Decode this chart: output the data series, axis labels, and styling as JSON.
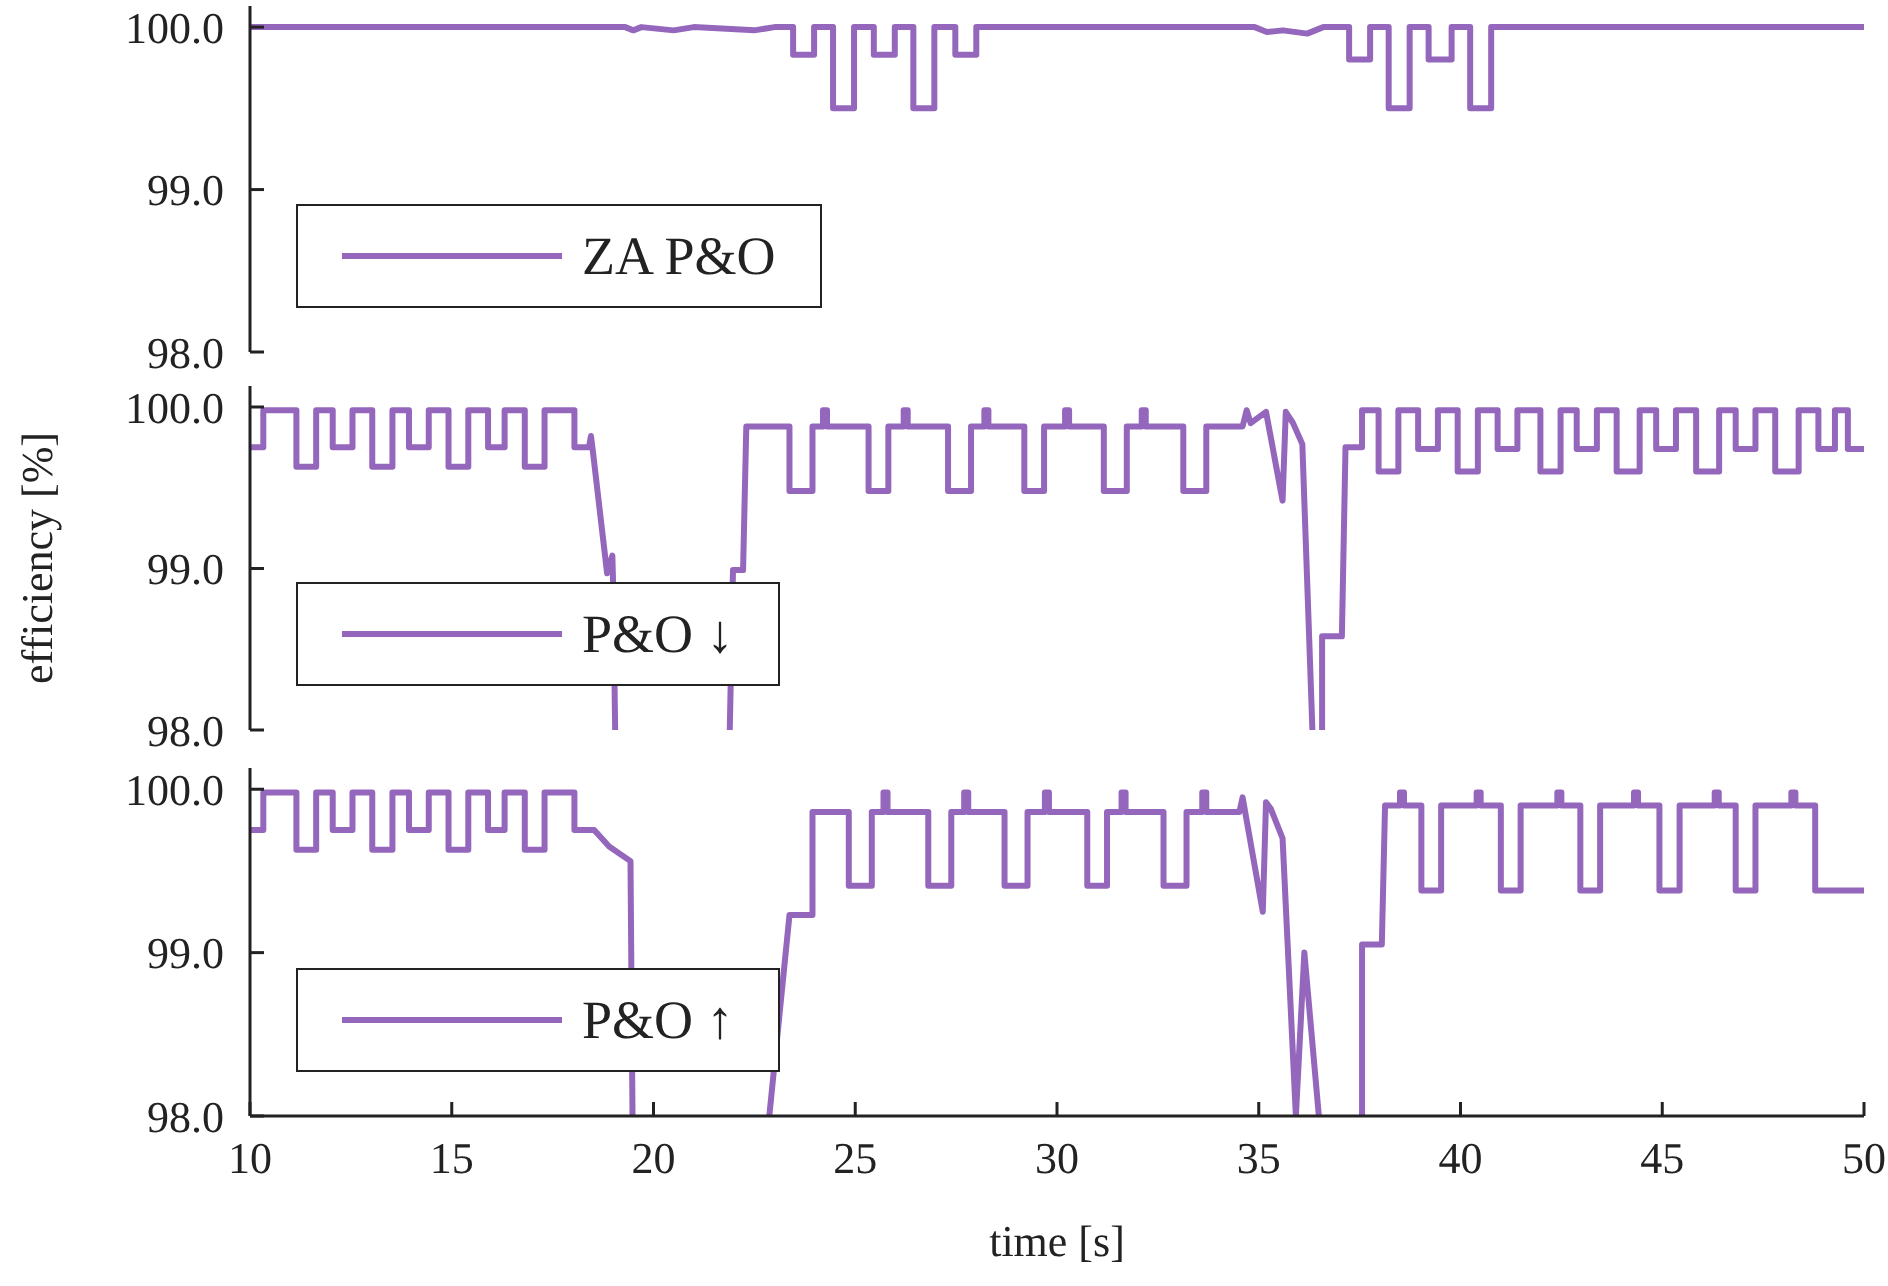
{
  "chart_data": [
    {
      "type": "line",
      "xlim": [
        10,
        50
      ],
      "xticks": [
        10,
        15,
        20,
        25,
        30,
        35,
        40,
        45,
        50
      ],
      "ylim": [
        98,
        100.13
      ],
      "yticks": [
        {
          "value": 98,
          "label": "98.0"
        },
        {
          "value": 99,
          "label": "99.0"
        },
        {
          "value": 100,
          "label": "100.0"
        }
      ],
      "tick_labels": "y",
      "legend": "bottom left",
      "series": [
        {
          "name": "ZA P&O",
          "color": "#9467bd",
          "x": [
            10,
            19.3,
            19.5,
            19.7,
            20.5,
            21.0,
            22.5,
            23.0,
            23.46,
            23.46,
            23.98,
            23.98,
            24.45,
            24.45,
            24.97,
            24.97,
            25.46,
            25.46,
            25.98,
            25.98,
            26.44,
            26.44,
            26.96,
            26.96,
            27.48,
            27.48,
            28.0,
            28.0,
            34.9,
            35.2,
            35.6,
            36.2,
            36.6,
            37.24,
            37.24,
            37.76,
            37.76,
            38.22,
            38.22,
            38.74,
            38.74,
            39.21,
            39.21,
            39.78,
            39.78,
            40.24,
            40.24,
            40.76,
            40.76,
            50
          ],
          "values": [
            100,
            100,
            99.98,
            100,
            99.98,
            100,
            99.98,
            100,
            100,
            99.83,
            99.83,
            100,
            100,
            99.5,
            99.5,
            100,
            100,
            99.83,
            99.83,
            100,
            100,
            99.5,
            99.5,
            100,
            100,
            99.83,
            99.83,
            100,
            100,
            99.97,
            99.98,
            99.96,
            100,
            100,
            99.8,
            99.8,
            100,
            100,
            99.5,
            99.5,
            100,
            100,
            99.8,
            99.8,
            100,
            100,
            99.5,
            99.5,
            100,
            100
          ]
        }
      ]
    },
    {
      "type": "line",
      "ylabel": "efficiency [%]",
      "xlim": [
        10,
        50
      ],
      "xticks": [
        10,
        15,
        20,
        25,
        30,
        35,
        40,
        45,
        50
      ],
      "ylim": [
        98,
        100.13
      ],
      "yticks": [
        {
          "value": 98,
          "label": "98.0"
        },
        {
          "value": 99,
          "label": "99.0"
        },
        {
          "value": 100,
          "label": "100.0"
        }
      ],
      "tick_labels": "y",
      "legend": "bottom left",
      "series": [
        {
          "name": "P&O ↓",
          "color": "#9467bd",
          "x": [
            10,
            10.33,
            10.33,
            11.15,
            11.15,
            11.64,
            11.64,
            12.05,
            12.05,
            12.54,
            12.54,
            13.03,
            13.03,
            13.53,
            13.53,
            13.94,
            13.94,
            14.43,
            14.43,
            14.92,
            14.92,
            15.41,
            15.41,
            15.9,
            15.9,
            16.31,
            16.31,
            16.81,
            16.81,
            17.3,
            17.3,
            18.04,
            18.04,
            18.4,
            18.45,
            18.5,
            18.85,
            18.98,
            19.0,
            19.05,
            20.5,
            21.89,
            21.97,
            22.22,
            22.3,
            23.37,
            23.37,
            23.94,
            23.94,
            24.2,
            24.2,
            24.3,
            24.3,
            25.33,
            25.33,
            25.82,
            25.82,
            26.2,
            26.2,
            26.3,
            26.3,
            27.3,
            27.3,
            27.87,
            27.87,
            28.2,
            28.2,
            28.3,
            28.3,
            29.19,
            29.19,
            29.68,
            29.68,
            30.2,
            30.2,
            30.3,
            30.3,
            31.16,
            31.16,
            31.73,
            31.73,
            32.1,
            32.1,
            32.2,
            32.2,
            33.13,
            33.13,
            33.7,
            33.7,
            34.6,
            34.7,
            34.8,
            35.18,
            35.59,
            35.67,
            35.85,
            36.08,
            36.33,
            36.45,
            36.57,
            36.57,
            37.06,
            37.15,
            37.56,
            37.56,
            37.97,
            37.97,
            38.46,
            38.46,
            38.95,
            38.95,
            39.44,
            39.44,
            39.93,
            39.93,
            40.43,
            40.43,
            40.92,
            40.92,
            41.41,
            41.41,
            41.98,
            41.98,
            42.48,
            42.48,
            42.88,
            42.88,
            43.38,
            43.38,
            43.87,
            43.87,
            44.44,
            44.44,
            44.85,
            44.85,
            45.34,
            45.34,
            45.84,
            45.84,
            46.41,
            46.41,
            46.82,
            46.82,
            47.31,
            47.31,
            47.8,
            47.8,
            48.38,
            48.38,
            48.87,
            48.87,
            49.28,
            49.28,
            49.6,
            49.6,
            50
          ],
          "values": [
            99.75,
            99.75,
            99.98,
            99.98,
            99.63,
            99.63,
            99.98,
            99.98,
            99.75,
            99.75,
            99.98,
            99.98,
            99.63,
            99.63,
            99.98,
            99.98,
            99.75,
            99.75,
            99.98,
            99.98,
            99.63,
            99.63,
            99.98,
            99.98,
            99.75,
            99.75,
            99.98,
            99.98,
            99.63,
            99.63,
            99.98,
            99.98,
            99.75,
            99.75,
            99.82,
            99.72,
            98.97,
            99.08,
            98.9,
            98.0,
            null,
            98.0,
            98.99,
            98.99,
            99.88,
            99.88,
            99.48,
            99.48,
            99.88,
            99.88,
            99.98,
            99.98,
            99.88,
            99.88,
            99.48,
            99.48,
            99.88,
            99.88,
            99.98,
            99.98,
            99.88,
            99.88,
            99.48,
            99.48,
            99.88,
            99.88,
            99.98,
            99.98,
            99.88,
            99.88,
            99.48,
            99.48,
            99.88,
            99.88,
            99.98,
            99.98,
            99.88,
            99.88,
            99.48,
            99.48,
            99.88,
            99.88,
            99.98,
            99.98,
            99.88,
            99.88,
            99.48,
            99.48,
            99.88,
            99.88,
            99.98,
            99.9,
            99.97,
            99.42,
            99.97,
            99.9,
            99.77,
            98.0,
            null,
            98.0,
            98.58,
            98.58,
            99.75,
            99.75,
            99.98,
            99.98,
            99.6,
            99.6,
            99.98,
            99.98,
            99.74,
            99.74,
            99.98,
            99.98,
            99.6,
            99.6,
            99.98,
            99.98,
            99.74,
            99.74,
            99.98,
            99.98,
            99.6,
            99.6,
            99.98,
            99.98,
            99.74,
            99.74,
            99.98,
            99.98,
            99.6,
            99.6,
            99.98,
            99.98,
            99.74,
            99.74,
            99.98,
            99.98,
            99.6,
            99.6,
            99.98,
            99.98,
            99.74,
            99.74,
            99.98,
            99.98,
            99.6,
            99.6,
            99.98,
            99.98,
            99.74,
            99.74,
            99.98,
            99.98,
            99.74,
            99.74
          ]
        }
      ]
    },
    {
      "type": "line",
      "xlabel": "time [s]",
      "xlim": [
        10,
        50
      ],
      "xticks": [
        10,
        15,
        20,
        25,
        30,
        35,
        40,
        45,
        50
      ],
      "ylim": [
        98,
        100.13
      ],
      "yticks": [
        {
          "value": 98,
          "label": "98.0"
        },
        {
          "value": 99,
          "label": "99.0"
        },
        {
          "value": 100,
          "label": "100.0"
        }
      ],
      "legend": "bottom left",
      "series": [
        {
          "name": "P&O ↑",
          "color": "#9467bd",
          "x": [
            10,
            10.33,
            10.33,
            11.15,
            11.15,
            11.64,
            11.64,
            12.05,
            12.05,
            12.54,
            12.54,
            13.03,
            13.03,
            13.53,
            13.53,
            13.94,
            13.94,
            14.43,
            14.43,
            14.92,
            14.92,
            15.41,
            15.41,
            15.9,
            15.9,
            16.31,
            16.31,
            16.81,
            16.81,
            17.3,
            17.3,
            18.04,
            18.04,
            18.53,
            18.9,
            19.43,
            19.48,
            21.0,
            22.87,
            23.37,
            23.94,
            23.94,
            24.84,
            24.84,
            25.41,
            25.41,
            25.7,
            25.7,
            25.8,
            25.8,
            26.81,
            26.81,
            27.38,
            27.38,
            27.7,
            27.7,
            27.8,
            27.8,
            28.7,
            28.7,
            29.27,
            29.27,
            29.7,
            29.7,
            29.8,
            29.8,
            30.75,
            30.75,
            31.24,
            31.24,
            31.6,
            31.6,
            31.7,
            31.7,
            32.64,
            32.64,
            33.21,
            33.21,
            33.6,
            33.6,
            33.7,
            33.7,
            34.52,
            34.6,
            35.1,
            35.18,
            35.3,
            35.59,
            35.92,
            36.13,
            36.49,
            37.0,
            37.56,
            37.56,
            38.05,
            38.13,
            38.5,
            38.5,
            38.6,
            38.6,
            39.03,
            39.03,
            39.52,
            39.52,
            40.4,
            40.4,
            40.5,
            40.5,
            41.0,
            41.0,
            41.49,
            41.49,
            42.4,
            42.4,
            42.5,
            42.5,
            42.97,
            42.97,
            43.46,
            43.46,
            44.3,
            44.3,
            44.4,
            44.4,
            44.93,
            44.93,
            45.43,
            45.43,
            46.3,
            46.3,
            46.4,
            46.4,
            46.82,
            46.82,
            47.31,
            47.31,
            48.2,
            48.2,
            48.3,
            48.3,
            48.79,
            48.79,
            50
          ],
          "values": [
            99.75,
            99.75,
            99.98,
            99.98,
            99.63,
            99.63,
            99.98,
            99.98,
            99.75,
            99.75,
            99.98,
            99.98,
            99.63,
            99.63,
            99.98,
            99.98,
            99.75,
            99.75,
            99.98,
            99.98,
            99.63,
            99.63,
            99.98,
            99.98,
            99.75,
            99.75,
            99.98,
            99.98,
            99.63,
            99.63,
            99.98,
            99.98,
            99.75,
            99.75,
            99.65,
            99.56,
            98.0,
            null,
            98.0,
            99.23,
            99.23,
            99.86,
            99.86,
            99.41,
            99.41,
            99.86,
            99.86,
            99.98,
            99.98,
            99.86,
            99.86,
            99.41,
            99.41,
            99.86,
            99.86,
            99.98,
            99.98,
            99.86,
            99.86,
            99.41,
            99.41,
            99.86,
            99.86,
            99.98,
            99.98,
            99.86,
            99.86,
            99.41,
            99.41,
            99.86,
            99.86,
            99.98,
            99.98,
            99.86,
            99.86,
            99.41,
            99.41,
            99.86,
            99.86,
            99.98,
            99.98,
            99.86,
            99.86,
            99.95,
            99.25,
            99.92,
            99.88,
            99.7,
            98.0,
            99.0,
            98.0,
            null,
            98.0,
            99.05,
            99.05,
            99.9,
            99.9,
            99.98,
            99.98,
            99.9,
            99.9,
            99.38,
            99.38,
            99.9,
            99.9,
            99.98,
            99.98,
            99.9,
            99.9,
            99.38,
            99.38,
            99.9,
            99.9,
            99.98,
            99.98,
            99.9,
            99.9,
            99.38,
            99.38,
            99.9,
            99.9,
            99.98,
            99.98,
            99.9,
            99.9,
            99.38,
            99.38,
            99.9,
            99.9,
            99.98,
            99.98,
            99.9,
            99.9,
            99.38,
            99.38,
            99.9,
            99.9,
            99.98,
            99.98,
            99.9,
            99.9,
            99.38,
            99.38
          ]
        }
      ]
    }
  ]
}
